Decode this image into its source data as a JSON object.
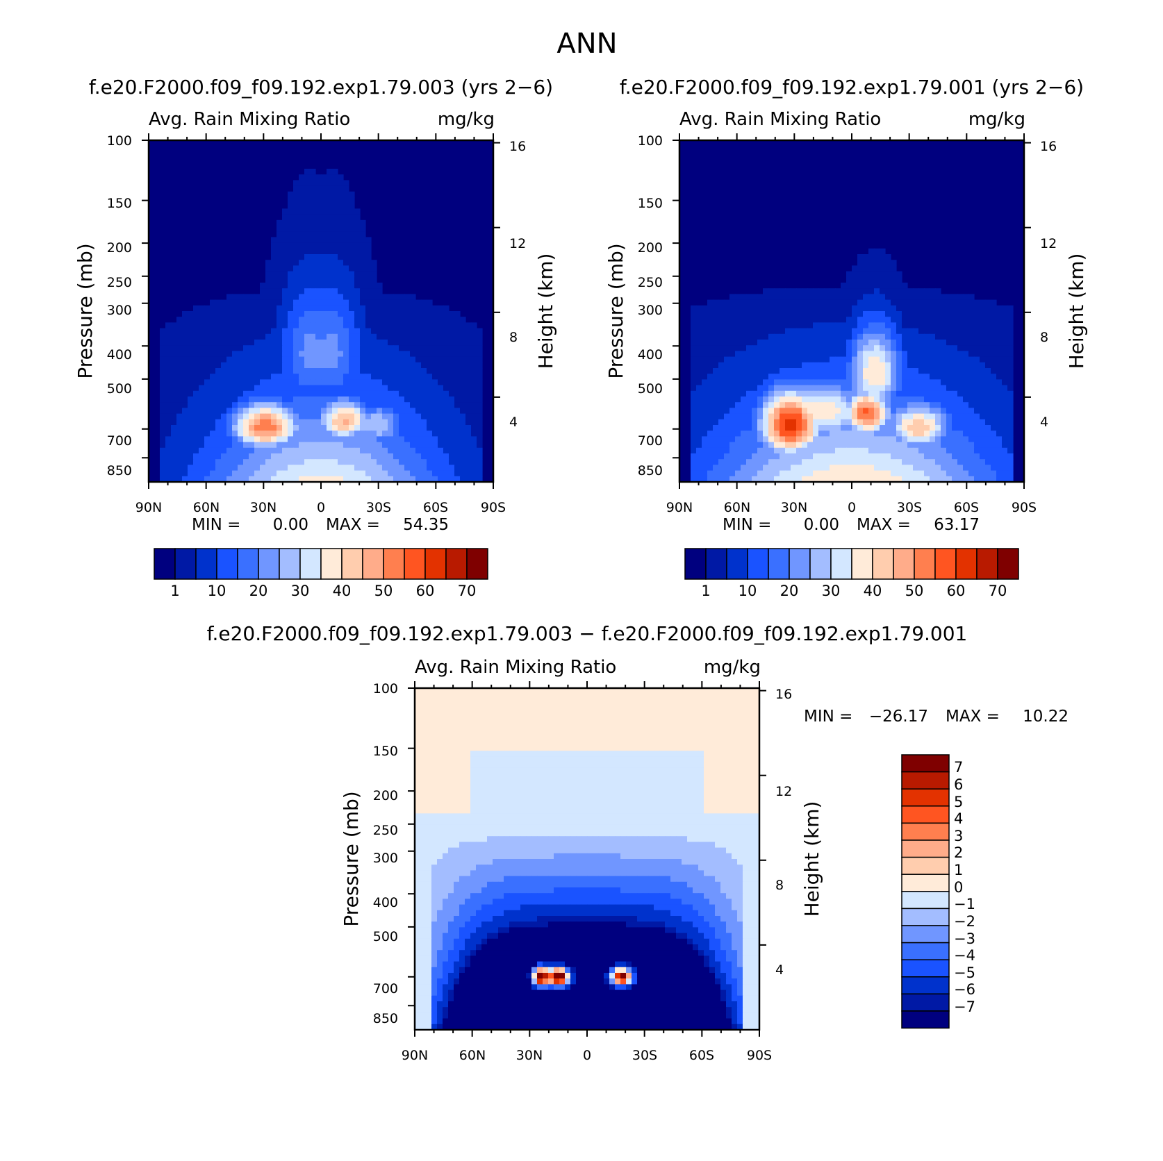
{
  "chart_data": {
    "type": "heatmap",
    "title": "ANN",
    "panels": [
      {
        "id": "panel1",
        "case_title": "f.e20.F2000.f09_f09.192.exp1.79.003 (yrs 2−6)",
        "variable": "Avg. Rain Mixing Ratio",
        "units": "mg/kg",
        "ylabel": "Pressure (mb)",
        "ylabel_right": "Height (km)",
        "x_ticks": [
          "90N",
          "60N",
          "30N",
          "0",
          "30S",
          "60S",
          "90S"
        ],
        "y_ticks": [
          "100",
          "150",
          "200",
          "250",
          "300",
          "400",
          "500",
          "700",
          "850"
        ],
        "height_ticks": [
          "16",
          "12",
          "8",
          "4"
        ],
        "min_label": "MIN =",
        "min_value": "0.00",
        "max_label": "MAX =",
        "max_value": "54.35",
        "blobs": [
          {
            "lat": -5,
            "p": 420,
            "val": 22,
            "sx": 12,
            "sy": 120
          },
          {
            "lat": 5,
            "p": 420,
            "val": 22,
            "sx": 12,
            "sy": 120
          },
          {
            "lat": -12,
            "p": 660,
            "val": 46,
            "sx": 10,
            "sy": 70
          },
          {
            "lat": 29,
            "p": 690,
            "val": 54,
            "sx": 13,
            "sy": 80
          },
          {
            "lat": -30,
            "p": 680,
            "val": 30,
            "sx": 10,
            "sy": 70
          }
        ]
      },
      {
        "id": "panel2",
        "case_title": "f.e20.F2000.f09_f09.192.exp1.79.001 (yrs 2−6)",
        "variable": "Avg. Rain Mixing Ratio",
        "units": "mg/kg",
        "ylabel": "Pressure (mb)",
        "ylabel_right": "Height (km)",
        "x_ticks": [
          "90N",
          "60N",
          "30N",
          "0",
          "30S",
          "60S",
          "90S"
        ],
        "y_ticks": [
          "100",
          "150",
          "200",
          "250",
          "300",
          "400",
          "500",
          "700",
          "850"
        ],
        "height_ticks": [
          "16",
          "12",
          "8",
          "4"
        ],
        "min_label": "MIN =",
        "min_value": "0.00",
        "max_label": "MAX =",
        "max_value": "63.17",
        "blobs": [
          {
            "lat": -12,
            "p": 480,
            "val": 40,
            "sx": 10,
            "sy": 100
          },
          {
            "lat": -8,
            "p": 630,
            "val": 56,
            "sx": 9,
            "sy": 70
          },
          {
            "lat": 32,
            "p": 680,
            "val": 63,
            "sx": 12,
            "sy": 110
          },
          {
            "lat": 15,
            "p": 620,
            "val": 40,
            "sx": 16,
            "sy": 90
          },
          {
            "lat": -35,
            "p": 690,
            "val": 44,
            "sx": 12,
            "sy": 80
          }
        ]
      }
    ],
    "colorbar": {
      "colors": [
        "#00007f",
        "#0019a5",
        "#0032cc",
        "#1a53ff",
        "#3a70ff",
        "#7096ff",
        "#a3bdff",
        "#d3e7ff",
        "#ffebd9",
        "#ffcdae",
        "#ffac8a",
        "#ff7f4f",
        "#ff5521",
        "#e33200",
        "#b81a00",
        "#7f0000"
      ],
      "labels": [
        "1",
        "10",
        "20",
        "30",
        "40",
        "50",
        "60",
        "70"
      ]
    },
    "difference_panel": {
      "case_title": "f.e20.F2000.f09_f09.192.exp1.79.003 − f.e20.F2000.f09_f09.192.exp1.79.001",
      "variable": "Avg. Rain Mixing Ratio",
      "units": "mg/kg",
      "ylabel": "Pressure (mb)",
      "ylabel_right": "Height (km)",
      "x_ticks": [
        "90N",
        "60N",
        "30N",
        "0",
        "30S",
        "60S",
        "90S"
      ],
      "y_ticks": [
        "100",
        "150",
        "200",
        "250",
        "300",
        "400",
        "500",
        "700",
        "850"
      ],
      "height_ticks": [
        "16",
        "12",
        "8",
        "4"
      ],
      "min_label": "MIN =",
      "min_value": "−26.17",
      "max_label": "MAX =",
      "max_value": "10.22",
      "hotspots": [
        {
          "lat": 24,
          "p": 700,
          "val": 10,
          "sx": 3,
          "sy": 30
        },
        {
          "lat": 15,
          "p": 700,
          "val": 10,
          "sx": 4,
          "sy": 30
        },
        {
          "lat": -18,
          "p": 700,
          "val": 8,
          "sx": 4,
          "sy": 30
        }
      ],
      "colorbar": {
        "colors": [
          "#00007f",
          "#0019a5",
          "#0032cc",
          "#1a53ff",
          "#3a70ff",
          "#7096ff",
          "#a3bdff",
          "#d3e7ff",
          "#ffebd9",
          "#ffcdae",
          "#ffac8a",
          "#ff7f4f",
          "#ff5521",
          "#e33200",
          "#b81a00",
          "#7f0000"
        ],
        "labels": [
          "7",
          "6",
          "5",
          "4",
          "3",
          "2",
          "1",
          "0",
          "−1",
          "−2",
          "−3",
          "−4",
          "−5",
          "−6",
          "−7"
        ]
      }
    }
  }
}
